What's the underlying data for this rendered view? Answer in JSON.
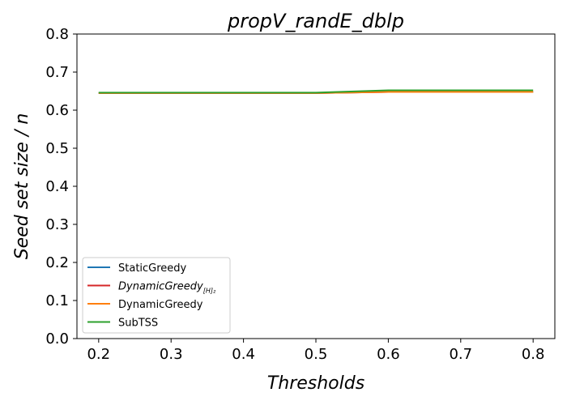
{
  "chart_data": {
    "type": "line",
    "title": "propV_randE_dblp",
    "xlabel": "Thresholds",
    "ylabel": "Seed set size / n",
    "x": [
      0.2,
      0.3,
      0.4,
      0.5,
      0.6,
      0.7,
      0.8
    ],
    "xlim": [
      0.17,
      0.83
    ],
    "ylim": [
      0.0,
      0.8
    ],
    "xticks": [
      "0.2",
      "0.3",
      "0.4",
      "0.5",
      "0.6",
      "0.7",
      "0.8"
    ],
    "yticks": [
      "0.0",
      "0.1",
      "0.2",
      "0.3",
      "0.4",
      "0.5",
      "0.6",
      "0.7",
      "0.8"
    ],
    "grid": false,
    "legend_position": "lower-left",
    "series": [
      {
        "name": "StaticGreedy",
        "color": "#1f77b4",
        "values": [
          0.645,
          0.645,
          0.645,
          0.645,
          0.648,
          0.648,
          0.648
        ]
      },
      {
        "name": "DynamicGreedy",
        "name_subscript": "[H]₂",
        "italic": true,
        "color": "#d62728",
        "values": [
          0.645,
          0.645,
          0.645,
          0.645,
          0.648,
          0.648,
          0.648
        ]
      },
      {
        "name": "DynamicGreedy",
        "color": "#ff7f0e",
        "values": [
          0.645,
          0.645,
          0.645,
          0.645,
          0.648,
          0.648,
          0.648
        ]
      },
      {
        "name": "SubTSS",
        "color": "#2ca02c",
        "values": [
          0.646,
          0.646,
          0.646,
          0.646,
          0.652,
          0.652,
          0.652
        ]
      }
    ]
  }
}
